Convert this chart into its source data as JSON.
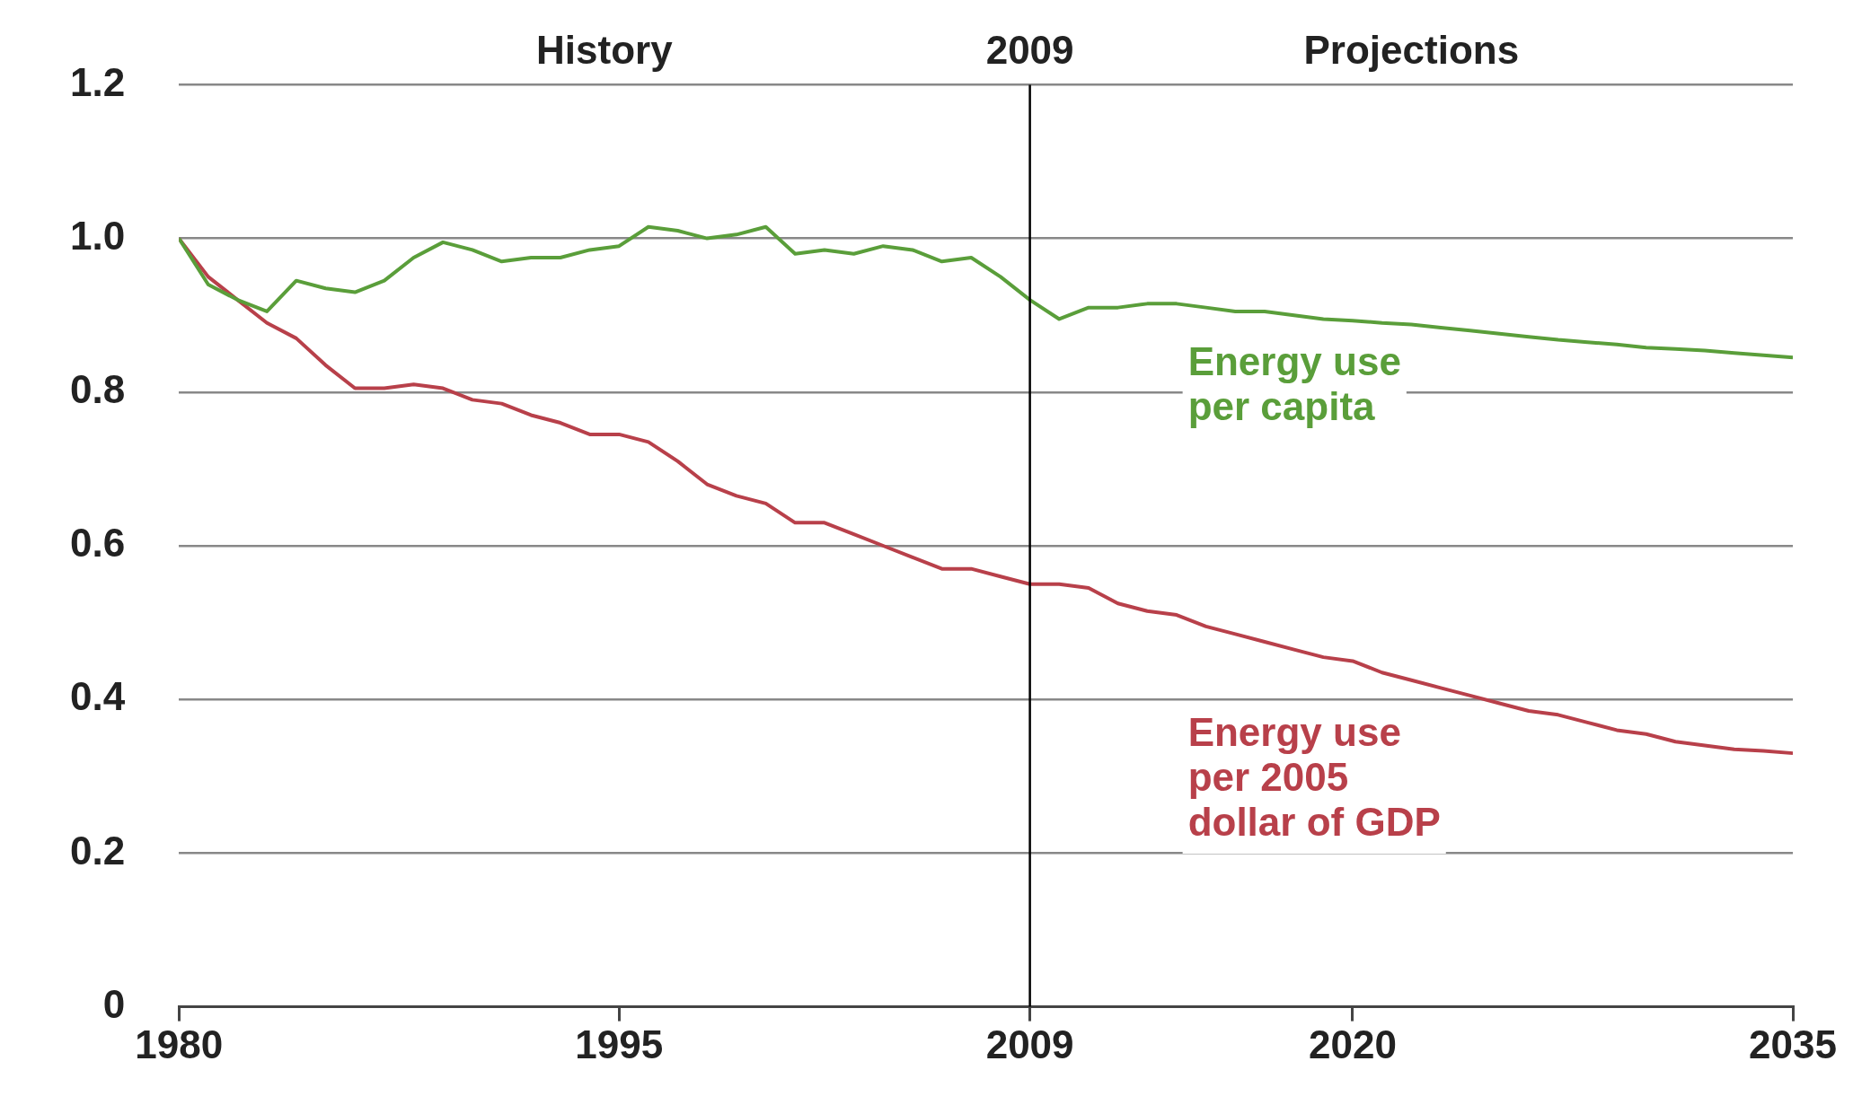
{
  "chart_data": {
    "type": "line",
    "x": [
      1980,
      1981,
      1982,
      1983,
      1984,
      1985,
      1986,
      1987,
      1988,
      1989,
      1990,
      1991,
      1992,
      1993,
      1994,
      1995,
      1996,
      1997,
      1998,
      1999,
      2000,
      2001,
      2002,
      2003,
      2004,
      2005,
      2006,
      2007,
      2008,
      2009,
      2010,
      2011,
      2012,
      2013,
      2014,
      2015,
      2016,
      2017,
      2018,
      2019,
      2020,
      2021,
      2022,
      2023,
      2024,
      2025,
      2026,
      2027,
      2028,
      2029,
      2030,
      2031,
      2032,
      2033,
      2034,
      2035
    ],
    "series": [
      {
        "name": "Energy use per capita",
        "color": "#5a9e3a",
        "values": [
          1.0,
          0.94,
          0.92,
          0.905,
          0.945,
          0.935,
          0.93,
          0.945,
          0.975,
          0.995,
          0.985,
          0.97,
          0.975,
          0.975,
          0.985,
          0.99,
          1.015,
          1.01,
          1.0,
          1.005,
          1.015,
          0.98,
          0.985,
          0.98,
          0.99,
          0.985,
          0.97,
          0.975,
          0.95,
          0.92,
          0.895,
          0.91,
          0.91,
          0.915,
          0.915,
          0.91,
          0.905,
          0.905,
          0.9,
          0.895,
          0.893,
          0.89,
          0.888,
          0.884,
          0.88,
          0.876,
          0.872,
          0.868,
          0.865,
          0.862,
          0.858,
          0.856,
          0.854,
          0.851,
          0.848,
          0.845
        ]
      },
      {
        "name": "Energy use per 2005 dollar of GDP",
        "color": "#b8404a",
        "values": [
          1.0,
          0.95,
          0.92,
          0.89,
          0.87,
          0.835,
          0.805,
          0.805,
          0.81,
          0.805,
          0.79,
          0.785,
          0.77,
          0.76,
          0.745,
          0.745,
          0.735,
          0.71,
          0.68,
          0.665,
          0.655,
          0.63,
          0.63,
          0.615,
          0.6,
          0.585,
          0.57,
          0.57,
          0.56,
          0.55,
          0.55,
          0.545,
          0.525,
          0.515,
          0.51,
          0.495,
          0.485,
          0.475,
          0.465,
          0.455,
          0.45,
          0.435,
          0.425,
          0.415,
          0.405,
          0.395,
          0.385,
          0.38,
          0.37,
          0.36,
          0.355,
          0.345,
          0.34,
          0.335,
          0.333,
          0.33
        ]
      }
    ],
    "xlim": [
      1980,
      2035
    ],
    "xticks": [
      1980,
      1995,
      2009,
      2020,
      2035
    ],
    "ylim": [
      0,
      1.2
    ],
    "yticks": [
      0,
      {
        "value": 0.2,
        "label": "0.2"
      },
      {
        "value": 0.4,
        "label": "0.4"
      },
      {
        "value": 0.6,
        "label": "0.6"
      },
      {
        "value": 0.8,
        "label": "0.8"
      },
      {
        "value": 1,
        "label": "1.0"
      },
      {
        "value": 1.2,
        "label": "1.2"
      }
    ],
    "grid": "y",
    "legend": false,
    "marker": "none",
    "line_style": "solid",
    "ref_lines": [
      {
        "axis": "x",
        "value": 2009,
        "label": "2009",
        "color": "#000000"
      }
    ],
    "annotations": [
      "History",
      "Projections"
    ]
  }
}
